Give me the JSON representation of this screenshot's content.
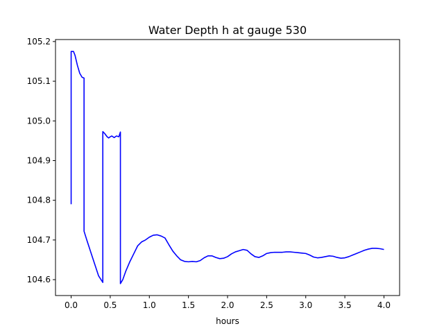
{
  "chart_data": {
    "type": "line",
    "title": "Water Depth h at gauge 530",
    "xlabel": "hours",
    "ylabel": "",
    "xlim": [
      -0.2,
      4.2
    ],
    "ylim": [
      104.56,
      105.205
    ],
    "xticks": [
      {
        "value": 0.0,
        "label": "0.0"
      },
      {
        "value": 0.5,
        "label": "0.5"
      },
      {
        "value": 1.0,
        "label": "1.0"
      },
      {
        "value": 1.5,
        "label": "1.5"
      },
      {
        "value": 2.0,
        "label": "2.0"
      },
      {
        "value": 2.5,
        "label": "2.5"
      },
      {
        "value": 3.0,
        "label": "3.0"
      },
      {
        "value": 3.5,
        "label": "3.5"
      },
      {
        "value": 4.0,
        "label": "4.0"
      }
    ],
    "yticks": [
      {
        "value": 104.6,
        "label": "104.6"
      },
      {
        "value": 104.7,
        "label": "104.7"
      },
      {
        "value": 104.8,
        "label": "104.8"
      },
      {
        "value": 104.9,
        "label": "104.9"
      },
      {
        "value": 105.0,
        "label": "105.0"
      },
      {
        "value": 105.1,
        "label": "105.1"
      },
      {
        "value": 105.2,
        "label": "105.2"
      }
    ],
    "grid": false,
    "legend": "none",
    "series": [
      {
        "color": "#0000ff",
        "x": [
          0.0,
          0.0,
          0.03,
          0.05,
          0.08,
          0.11,
          0.14,
          0.165,
          0.165,
          0.2,
          0.25,
          0.3,
          0.35,
          0.405,
          0.405,
          0.43,
          0.46,
          0.48,
          0.5,
          0.52,
          0.55,
          0.58,
          0.61,
          0.63,
          0.63,
          0.66,
          0.7,
          0.75,
          0.8,
          0.85,
          0.9,
          0.95,
          1.0,
          1.05,
          1.1,
          1.15,
          1.2,
          1.25,
          1.3,
          1.35,
          1.4,
          1.45,
          1.5,
          1.55,
          1.6,
          1.65,
          1.7,
          1.75,
          1.8,
          1.85,
          1.9,
          1.95,
          2.0,
          2.05,
          2.1,
          2.15,
          2.2,
          2.25,
          2.3,
          2.35,
          2.4,
          2.45,
          2.5,
          2.55,
          2.6,
          2.65,
          2.7,
          2.75,
          2.8,
          2.85,
          2.9,
          2.95,
          3.0,
          3.05,
          3.1,
          3.15,
          3.2,
          3.25,
          3.3,
          3.35,
          3.4,
          3.45,
          3.5,
          3.55,
          3.6,
          3.65,
          3.7,
          3.75,
          3.8,
          3.85,
          3.9,
          3.95,
          4.0
        ],
        "y": [
          104.79,
          105.175,
          105.175,
          105.165,
          105.14,
          105.12,
          105.11,
          105.108,
          104.722,
          104.7,
          104.67,
          104.64,
          104.61,
          104.593,
          104.973,
          104.968,
          104.96,
          104.957,
          104.96,
          104.962,
          104.958,
          104.962,
          104.96,
          104.972,
          104.59,
          104.6,
          104.622,
          104.645,
          104.665,
          104.685,
          104.695,
          104.7,
          104.707,
          104.712,
          104.713,
          104.71,
          104.705,
          104.688,
          104.672,
          104.66,
          104.65,
          104.646,
          104.645,
          104.646,
          104.645,
          104.648,
          104.655,
          104.66,
          104.66,
          104.656,
          104.653,
          104.654,
          104.658,
          104.665,
          104.67,
          104.673,
          104.676,
          104.674,
          104.665,
          104.658,
          104.656,
          104.66,
          104.666,
          104.668,
          104.669,
          104.669,
          104.669,
          104.67,
          104.67,
          104.669,
          104.668,
          104.667,
          104.666,
          104.662,
          104.657,
          104.655,
          104.656,
          104.658,
          104.66,
          104.659,
          104.656,
          104.654,
          104.655,
          104.658,
          104.662,
          104.666,
          104.67,
          104.674,
          104.677,
          104.679,
          104.679,
          104.678,
          104.676
        ]
      }
    ]
  }
}
